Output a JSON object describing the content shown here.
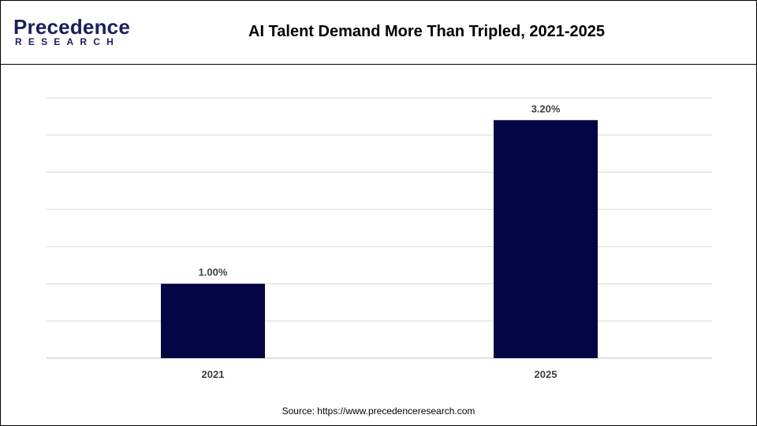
{
  "header": {
    "logo_main": "Precedence",
    "logo_sub": "RESEARCH",
    "title": "AI Talent Demand More Than Tripled, 2021-2025"
  },
  "source_text": "Source: https://www.precedenceresearch.com",
  "colors": {
    "bar": "#030545",
    "grid": "#d9d9d9",
    "logo": "#1a1f5c"
  },
  "chart_data": {
    "type": "bar",
    "title": "AI Talent Demand More Than Tripled, 2021-2025",
    "xlabel": "",
    "ylabel": "",
    "categories": [
      "2021",
      "2025"
    ],
    "values": [
      1.0,
      3.2
    ],
    "data_labels": [
      "1.00%",
      "3.20%"
    ],
    "ylim": [
      0,
      3.5
    ],
    "grid": true,
    "legend": false
  }
}
